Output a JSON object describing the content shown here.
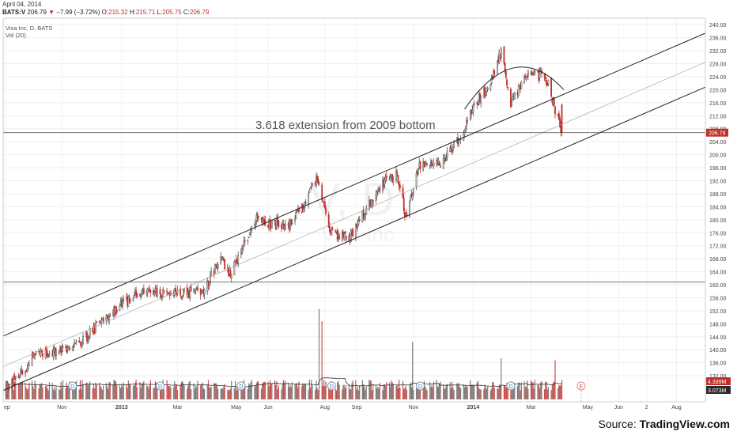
{
  "header": {
    "date": "April 04, 2014",
    "symbol": "BATS:V",
    "last": "206.79",
    "change": "−7.99 (−3.72%)",
    "o_label": "O:",
    "o_value": "215.32",
    "h_label": "H:",
    "h_value": "215.71",
    "l_label": "L:",
    "l_value": "205.75",
    "c_label": "C:",
    "c_value": "206.79"
  },
  "legend": {
    "title": "Visa Inc, D, BATS",
    "volume": "Vol (20)"
  },
  "watermark": {
    "symbol": "V, D",
    "name": "Visa Inc"
  },
  "annotation": "3.618 extension from 2009 bottom",
  "source": {
    "prefix": "Source: ",
    "brand": "TradingView.com"
  },
  "colors": {
    "up": "#555555",
    "down": "#c0302b",
    "price_tag": "#c0302b",
    "volume_tag": "#2a2a2a"
  },
  "chart_data": {
    "type": "candlestick",
    "y_axis_side": "right",
    "ylim": [
      124,
      242
    ],
    "price_ticks": [
      132,
      136,
      140,
      144,
      148,
      152,
      156,
      160,
      164,
      168,
      172,
      176,
      180,
      184,
      188,
      192,
      196,
      200,
      204,
      208,
      212,
      216,
      220,
      224,
      228,
      232,
      236,
      240
    ],
    "price_tick_labels": [
      "132.00",
      "136.00",
      "140.00",
      "144.00",
      "148.00",
      "152.00",
      "156.00",
      "160.00",
      "164.00",
      "168.00",
      "172.00",
      "176.00",
      "180.00",
      "184.00",
      "188.00",
      "192.00",
      "196.00",
      "200.00",
      "204.00",
      "208.00",
      "212.00",
      "216.00",
      "220.00",
      "224.00",
      "228.00",
      "232.00",
      "236.00",
      "240.00"
    ],
    "x_tick_labels": [
      "ep",
      "Nov",
      "2013",
      "Mar",
      "May",
      "Jun",
      "Aug",
      "Sep",
      "Nov",
      "2014",
      "Mar",
      "May",
      "Jun",
      "2",
      "Aug"
    ],
    "x_range": [
      "2012-09-01",
      "2014-08-31"
    ],
    "x_tick_dates": [
      "2012-09-03",
      "2012-11-01",
      "2013-01-02",
      "2013-03-01",
      "2013-05-01",
      "2013-06-03",
      "2013-08-01",
      "2013-09-03",
      "2013-11-01",
      "2014-01-02",
      "2014-03-03",
      "2014-05-01",
      "2014-06-02",
      "2014-07-01",
      "2014-08-01"
    ],
    "candle_anchors": [
      {
        "date": "2012-09-04",
        "close": 127.5
      },
      {
        "date": "2012-10-05",
        "close": 138.5
      },
      {
        "date": "2012-11-15",
        "close": 141.0
      },
      {
        "date": "2012-12-17",
        "close": 149.5
      },
      {
        "date": "2013-01-15",
        "close": 157.0
      },
      {
        "date": "2013-02-04",
        "close": 157.5
      },
      {
        "date": "2013-03-01",
        "close": 157.0
      },
      {
        "date": "2013-03-28",
        "close": 158.5
      },
      {
        "date": "2013-04-15",
        "close": 168.0
      },
      {
        "date": "2013-04-25",
        "close": 163.0
      },
      {
        "date": "2013-05-20",
        "close": 180.0
      },
      {
        "date": "2013-06-24",
        "close": 178.0
      },
      {
        "date": "2013-07-08",
        "close": 184.0
      },
      {
        "date": "2013-07-24",
        "close": 193.0
      },
      {
        "date": "2013-08-07",
        "close": 176.0
      },
      {
        "date": "2013-08-26",
        "close": 174.0
      },
      {
        "date": "2013-09-10",
        "close": 182.0
      },
      {
        "date": "2013-09-30",
        "close": 191.0
      },
      {
        "date": "2013-10-15",
        "close": 194.0
      },
      {
        "date": "2013-10-24",
        "close": 181.0
      },
      {
        "date": "2013-11-08",
        "close": 197.0
      },
      {
        "date": "2013-11-29",
        "close": 198.0
      },
      {
        "date": "2013-12-20",
        "close": 205.0
      },
      {
        "date": "2013-12-31",
        "close": 214.0
      },
      {
        "date": "2014-01-20",
        "close": 222.0
      },
      {
        "date": "2014-01-31",
        "close": 232.0
      },
      {
        "date": "2014-02-10",
        "close": 216.0
      },
      {
        "date": "2014-02-27",
        "close": 225.0
      },
      {
        "date": "2014-03-14",
        "close": 224.0
      },
      {
        "date": "2014-03-21",
        "close": 222.0
      },
      {
        "date": "2014-03-28",
        "close": 214.0
      },
      {
        "date": "2014-04-04",
        "close": 206.79
      }
    ],
    "volume_spikes_millions": [
      {
        "date": "2013-07-26",
        "volume": 22.0
      },
      {
        "date": "2013-07-29",
        "volume": 19.0
      },
      {
        "date": "2013-10-31",
        "volume": 14.0
      },
      {
        "date": "2014-01-31",
        "volume": 10.0
      },
      {
        "date": "2014-03-28",
        "volume": 9.5
      }
    ],
    "volume_labels": [
      "4.339M",
      "3.073M"
    ],
    "price_label": "206.79",
    "channel_upper": [
      {
        "date": "2012-09-01",
        "price": 144.2
      },
      {
        "date": "2014-08-31",
        "price": 237.4
      }
    ],
    "channel_middle": [
      {
        "date": "2012-09-01",
        "price": 134.8
      },
      {
        "date": "2014-08-31",
        "price": 228.5
      }
    ],
    "channel_lower": [
      {
        "date": "2012-09-01",
        "price": 127.5
      },
      {
        "date": "2014-08-31",
        "price": 220.8
      }
    ],
    "horizontal_lines": [
      206.79,
      160.8
    ],
    "dividend_markers": [
      {
        "date": "2012-11-12",
        "label": "D"
      },
      {
        "date": "2013-02-11",
        "label": "D"
      },
      {
        "date": "2013-05-06",
        "label": "D"
      },
      {
        "date": "2013-08-08",
        "label": "D"
      },
      {
        "date": "2013-11-08",
        "label": "D"
      },
      {
        "date": "2014-02-10",
        "label": "D"
      }
    ],
    "earnings_marker": {
      "date": "2014-04-24",
      "label": "E"
    }
  }
}
